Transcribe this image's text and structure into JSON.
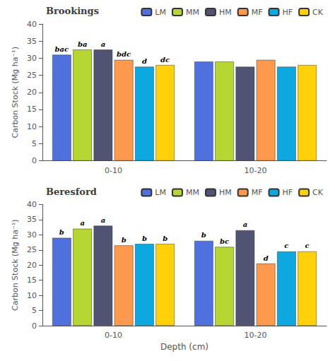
{
  "chart_data": [
    {
      "type": "bar",
      "title": "Brookings",
      "categories": [
        "0-10",
        "10-20"
      ],
      "series": [
        {
          "name": "LM",
          "values": [
            31.0,
            29.0
          ]
        },
        {
          "name": "MM",
          "values": [
            32.5,
            29.0
          ]
        },
        {
          "name": "HM",
          "values": [
            32.5,
            27.5
          ]
        },
        {
          "name": "MF",
          "values": [
            29.5,
            29.5
          ]
        },
        {
          "name": "HF",
          "values": [
            27.5,
            27.5
          ]
        },
        {
          "name": "CK",
          "values": [
            28.0,
            28.0
          ]
        }
      ],
      "annotations": [
        {
          "text": "bac",
          "series": "LM",
          "category": "0-10"
        },
        {
          "text": "ba",
          "series": "MM",
          "category": "0-10"
        },
        {
          "text": "a",
          "series": "HM",
          "category": "0-10"
        },
        {
          "text": "bdc",
          "series": "MF",
          "category": "0-10"
        },
        {
          "text": "d",
          "series": "HF",
          "category": "0-10"
        },
        {
          "text": "dc",
          "series": "CK",
          "category": "0-10"
        }
      ],
      "ylabel": "Carbon Stock (Mg ha⁻¹)",
      "ylim": [
        0,
        40
      ],
      "yticks": [
        0,
        5,
        10,
        15,
        20,
        25,
        30,
        35,
        40
      ],
      "grid": false,
      "legend": "upper right"
    },
    {
      "type": "bar",
      "title": "Beresford",
      "categories": [
        "0-10",
        "10-20"
      ],
      "series": [
        {
          "name": "LM",
          "values": [
            29.0,
            28.0
          ]
        },
        {
          "name": "MM",
          "values": [
            32.0,
            26.0
          ]
        },
        {
          "name": "HM",
          "values": [
            33.0,
            31.5
          ]
        },
        {
          "name": "MF",
          "values": [
            26.5,
            20.5
          ]
        },
        {
          "name": "HF",
          "values": [
            27.0,
            24.5
          ]
        },
        {
          "name": "CK",
          "values": [
            27.0,
            24.5
          ]
        }
      ],
      "annotations": [
        {
          "text": "b",
          "series": "LM",
          "category": "0-10"
        },
        {
          "text": "a",
          "series": "MM",
          "category": "0-10"
        },
        {
          "text": "a",
          "series": "HM",
          "category": "0-10"
        },
        {
          "text": "b",
          "series": "MF",
          "category": "0-10"
        },
        {
          "text": "b",
          "series": "HF",
          "category": "0-10"
        },
        {
          "text": "b",
          "series": "CK",
          "category": "0-10"
        },
        {
          "text": "b",
          "series": "LM",
          "category": "10-20"
        },
        {
          "text": "bc",
          "series": "MM",
          "category": "10-20"
        },
        {
          "text": "a",
          "series": "HM",
          "category": "10-20"
        },
        {
          "text": "d",
          "series": "MF",
          "category": "10-20"
        },
        {
          "text": "c",
          "series": "HF",
          "category": "10-20"
        },
        {
          "text": "c",
          "series": "CK",
          "category": "10-20"
        }
      ],
      "ylabel": "Carbon Stock (Mg ha⁻¹)",
      "xlabel": "Depth (cm)",
      "ylim": [
        0,
        40
      ],
      "yticks": [
        0,
        5,
        10,
        15,
        20,
        25,
        30,
        35,
        40
      ],
      "grid": false,
      "legend": "upper right"
    }
  ]
}
